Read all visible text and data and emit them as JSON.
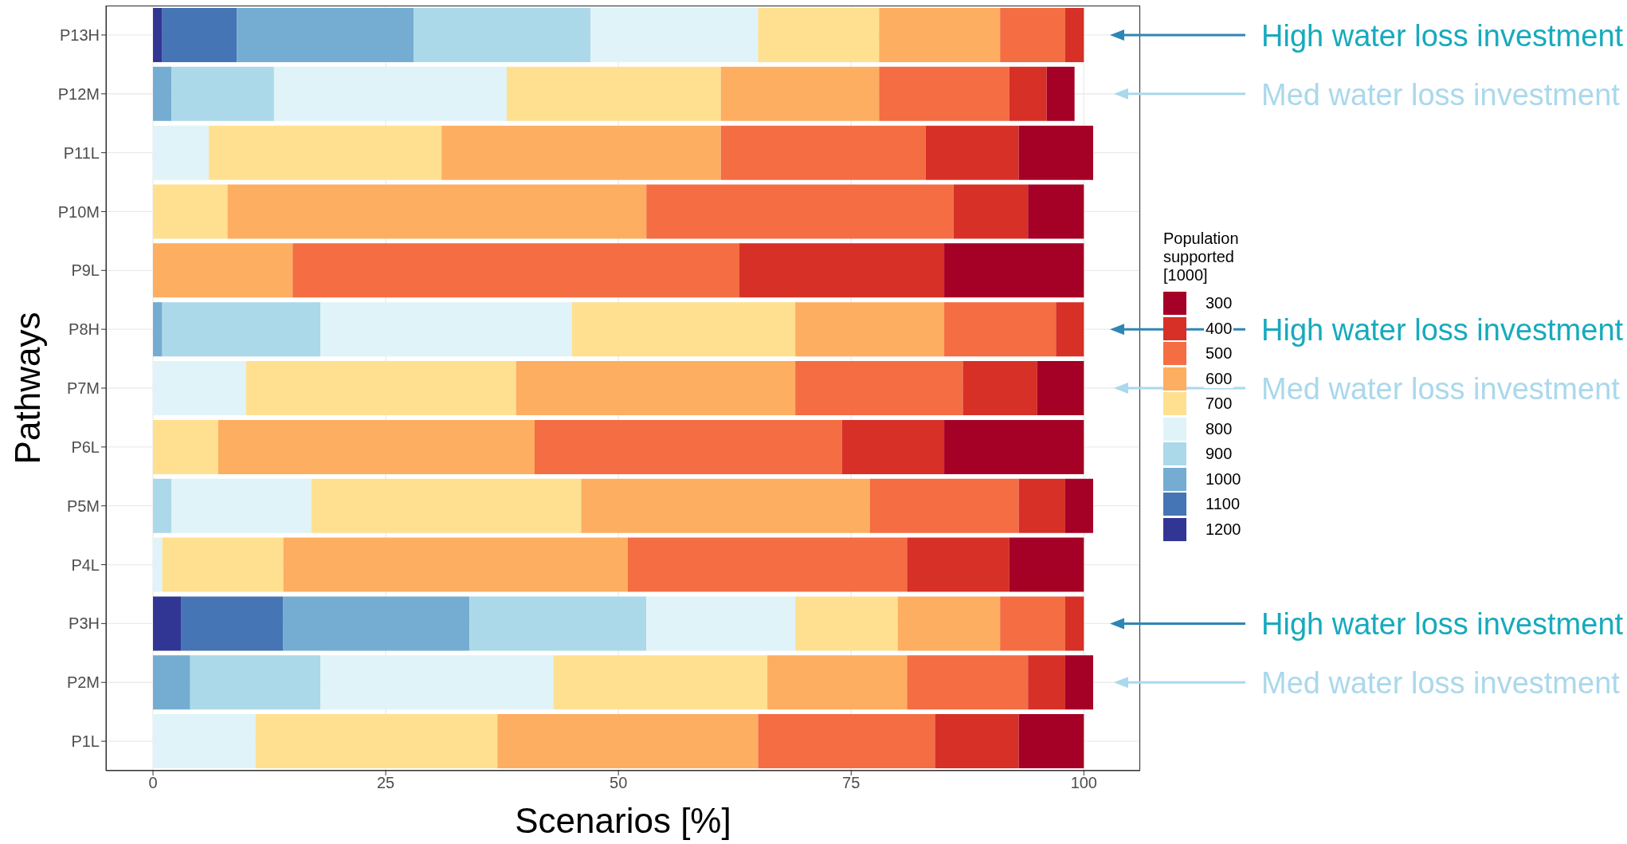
{
  "chart_data": {
    "type": "bar",
    "orientation": "horizontal",
    "stacked": true,
    "xlabel": "Scenarios [%]",
    "ylabel": "Pathways",
    "legend_title": "Population supported [1000]",
    "legend": "right",
    "grid": true,
    "categories": [
      "P13H",
      "P12M",
      "P11L",
      "P10M",
      "P9L",
      "P8H",
      "P7M",
      "P6L",
      "P5M",
      "P4L",
      "P3H",
      "P2M",
      "P1L"
    ],
    "xlim": [
      -5.05,
      106.05
    ],
    "xticks": [
      0,
      25,
      50,
      75,
      100
    ],
    "series": [
      {
        "name": "1200",
        "color": "#313695",
        "values": [
          1,
          null,
          null,
          null,
          null,
          null,
          null,
          null,
          null,
          null,
          3,
          null,
          null
        ]
      },
      {
        "name": "1100",
        "color": "#4575b4",
        "values": [
          8,
          null,
          null,
          null,
          null,
          null,
          null,
          null,
          null,
          null,
          11,
          null,
          null
        ]
      },
      {
        "name": "1000",
        "color": "#74add1",
        "values": [
          19,
          2,
          null,
          null,
          null,
          1,
          null,
          null,
          null,
          null,
          20,
          4,
          null
        ]
      },
      {
        "name": "900",
        "color": "#abd9e9",
        "values": [
          19,
          11,
          null,
          null,
          null,
          17,
          null,
          null,
          2,
          null,
          19,
          14,
          null
        ]
      },
      {
        "name": "800",
        "color": "#e0f3f8",
        "values": [
          18,
          25,
          6,
          null,
          null,
          27,
          10,
          null,
          15,
          1,
          16,
          25,
          11
        ]
      },
      {
        "name": "700",
        "color": "#fee090",
        "values": [
          13,
          23,
          25,
          8,
          null,
          24,
          29,
          7,
          29,
          13,
          11,
          23,
          26
        ]
      },
      {
        "name": "600",
        "color": "#fdae61",
        "values": [
          13,
          17,
          30,
          45,
          15,
          16,
          30,
          34,
          31,
          37,
          11,
          15,
          28
        ]
      },
      {
        "name": "500",
        "color": "#f46d43",
        "values": [
          7,
          14,
          22,
          33,
          48,
          12,
          18,
          33,
          16,
          30,
          7,
          13,
          19
        ]
      },
      {
        "name": "400",
        "color": "#d73027",
        "values": [
          2,
          4,
          10,
          8,
          22,
          3,
          8,
          11,
          5,
          11,
          2,
          4,
          9
        ]
      },
      {
        "name": "300",
        "color": "#a50026",
        "values": [
          null,
          3,
          8,
          6,
          15,
          null,
          5,
          15,
          3,
          8,
          null,
          3,
          7
        ]
      }
    ],
    "annotations": [
      "High water loss investment",
      "Med water loss investment",
      "High water loss investment",
      "Med water loss investment",
      "High water loss investment",
      "Med water loss investment"
    ]
  }
}
